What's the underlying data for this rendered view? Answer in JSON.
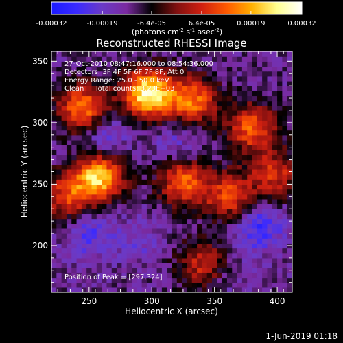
{
  "chart_data": {
    "type": "heatmap",
    "title": "Reconstructed RHESSI Image",
    "xlabel": "Heliocentric X (arcsec)",
    "ylabel": "Heliocentric Y (arcsec)",
    "xlim": [
      220,
      412
    ],
    "ylim": [
      162,
      358
    ],
    "x_ticks": [
      250,
      300,
      350,
      400
    ],
    "y_ticks": [
      200,
      250,
      300,
      350
    ],
    "colorbar": {
      "range": [
        -0.00032,
        0.00032
      ],
      "tick_values": [
        -0.00032,
        -0.00019,
        -6.4e-05,
        6.4e-05,
        0.00019,
        0.00032
      ],
      "tick_labels": [
        "-0.00032",
        "-0.00019",
        "-6.4e-05",
        "6.4e-05",
        "0.00019",
        "0.00032"
      ],
      "unit_label": "(photons cm",
      "unit_sup1": "-2",
      "unit_mid": " s",
      "unit_sup2": "-1",
      "unit_mid2": " asec",
      "unit_sup3": "-2",
      "unit_end": ")",
      "colors": [
        "#1a1aff",
        "#3a2aff",
        "#6a3ac8",
        "#7a2aa0",
        "#000000",
        "#801010",
        "#d02010",
        "#ff5a00",
        "#ffb000",
        "#ffff90",
        "#ffffff"
      ]
    },
    "annotations": [
      "27-Oct-2010 08:47:16.000 to 08:54:36.000",
      "Detectors: 3F 4F 5F 6F 7F 8F, Att 0",
      "Energy Range: 25.0 - 50.0 keV",
      "Clean     Total counts: 3.23E+03"
    ],
    "peak_text": "Position of Peak = [297,324]",
    "peak": [
      297,
      324
    ],
    "bright_regions": [
      {
        "x": 297,
        "y": 324,
        "v": 0.00032
      },
      {
        "x": 258,
        "y": 256,
        "v": 0.00026
      },
      {
        "x": 245,
        "y": 312,
        "v": 0.0002
      },
      {
        "x": 332,
        "y": 318,
        "v": 0.00018
      },
      {
        "x": 380,
        "y": 296,
        "v": 0.00016
      },
      {
        "x": 325,
        "y": 252,
        "v": 0.00017
      },
      {
        "x": 362,
        "y": 240,
        "v": 0.00014
      },
      {
        "x": 232,
        "y": 240,
        "v": 0.00012
      },
      {
        "x": 398,
        "y": 258,
        "v": 0.00011
      },
      {
        "x": 340,
        "y": 185,
        "v": 0.0001
      }
    ],
    "dark_regions": [
      {
        "x": 262,
        "y": 290,
        "v": -0.00019
      },
      {
        "x": 320,
        "y": 285,
        "v": -0.00016
      },
      {
        "x": 250,
        "y": 210,
        "v": -0.00019
      },
      {
        "x": 290,
        "y": 205,
        "v": -0.00014
      },
      {
        "x": 385,
        "y": 215,
        "v": -0.00022
      },
      {
        "x": 360,
        "y": 170,
        "v": -0.00012
      }
    ]
  },
  "footer_date": "1-Jun-2019 01:18"
}
